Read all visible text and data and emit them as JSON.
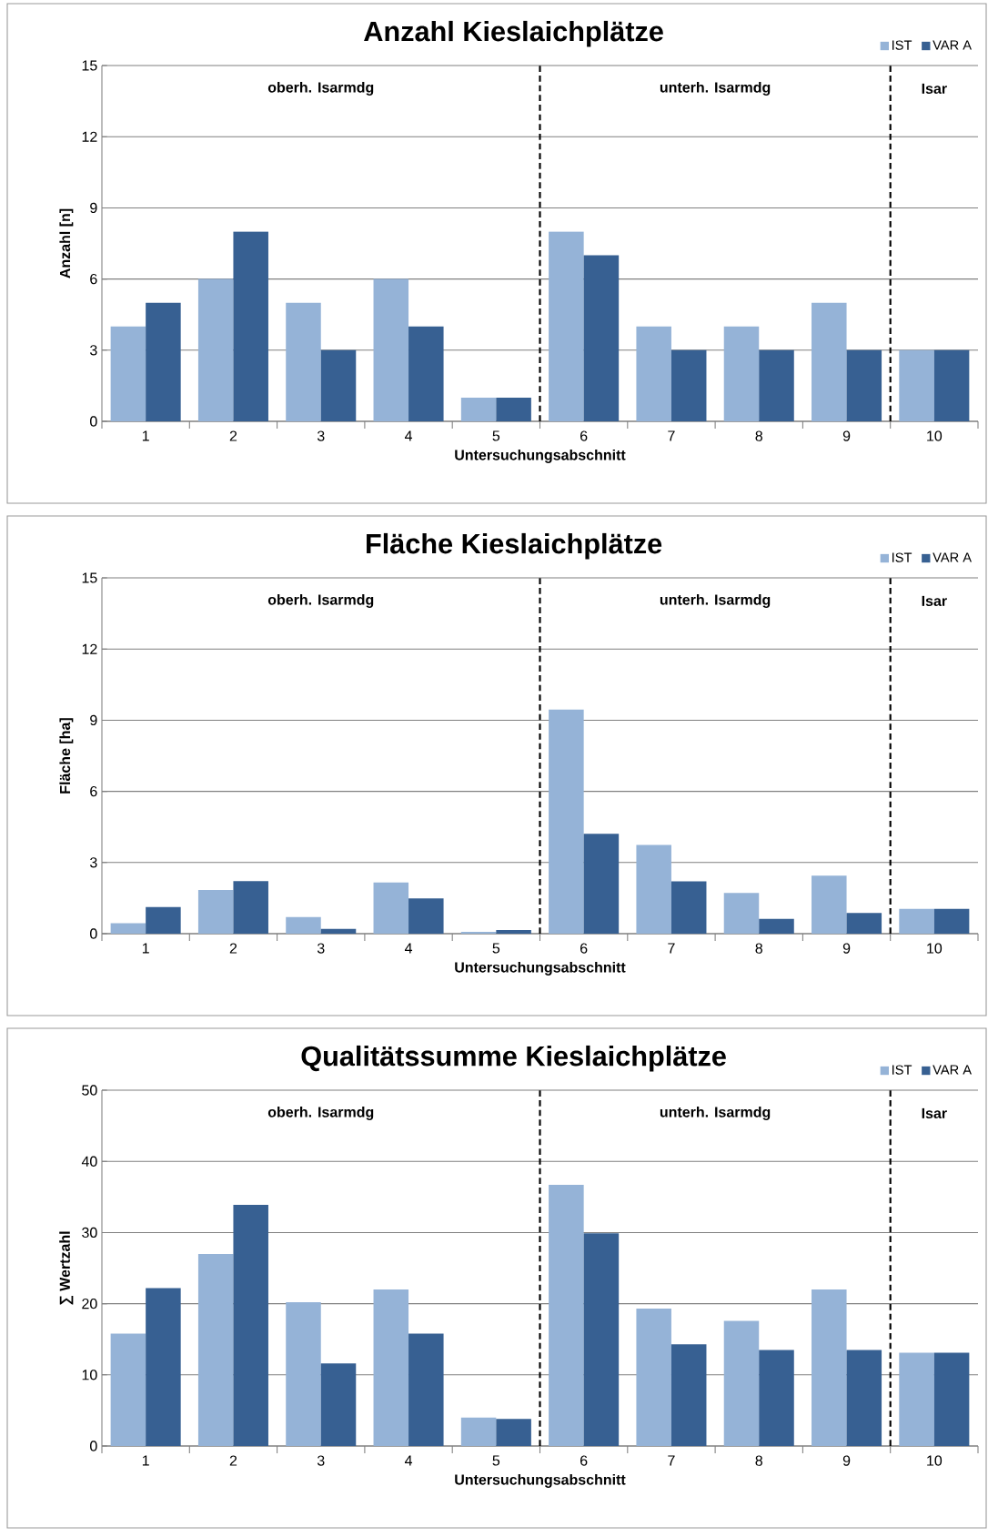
{
  "chart_data": [
    {
      "type": "bar",
      "title": "Anzahl Kieslaichplätze",
      "xlabel": "Untersuchungsabschnitt",
      "ylabel": "Anzahl [n]",
      "categories": [
        "1",
        "2",
        "3",
        "4",
        "5",
        "6",
        "7",
        "8",
        "9",
        "10"
      ],
      "series": [
        {
          "name": "IST",
          "color": "#95b3d7",
          "values": [
            4,
            6,
            5,
            6,
            1,
            8,
            4,
            4,
            5,
            3
          ]
        },
        {
          "name": "VAR A",
          "color": "#376092",
          "values": [
            5,
            8,
            3,
            4,
            1,
            7,
            3,
            3,
            3,
            3
          ]
        }
      ],
      "ylim": [
        0,
        15
      ],
      "yticks": [
        0,
        3,
        6,
        9,
        12,
        15
      ],
      "grid": "y",
      "legend": "top right",
      "annotations": [
        "oberh. Isarmdg",
        "unterh. Isarmdg",
        "Isar"
      ]
    },
    {
      "type": "bar",
      "title": "Fläche Kieslaichplätze",
      "xlabel": "Untersuchungsabschnitt",
      "ylabel": "Fläche [ha]",
      "categories": [
        "1",
        "2",
        "3",
        "4",
        "5",
        "6",
        "7",
        "8",
        "9",
        "10"
      ],
      "series": [
        {
          "name": "IST",
          "color": "#95b3d7",
          "values": [
            0.44,
            1.84,
            0.7,
            2.16,
            0.08,
            9.45,
            3.74,
            1.72,
            2.45,
            1.05
          ]
        },
        {
          "name": "VAR A",
          "color": "#376092",
          "values": [
            1.12,
            2.22,
            0.2,
            1.49,
            0.15,
            4.21,
            2.21,
            0.62,
            0.87,
            1.05
          ]
        }
      ],
      "ylim": [
        0,
        15
      ],
      "yticks": [
        0,
        3,
        6,
        9,
        12,
        15
      ],
      "grid": "y",
      "legend": "top right",
      "annotations": [
        "oberh. Isarmdg",
        "unterh. Isarmdg",
        "Isar"
      ]
    },
    {
      "type": "bar",
      "title": "Qualitätssumme Kieslaichplätze",
      "xlabel": "Untersuchungsabschnitt",
      "ylabel": "∑ Wertzahl",
      "categories": [
        "1",
        "2",
        "3",
        "4",
        "5",
        "6",
        "7",
        "8",
        "9",
        "10"
      ],
      "series": [
        {
          "name": "IST",
          "color": "#95b3d7",
          "values": [
            15.8,
            27.0,
            20.2,
            22.0,
            4.0,
            36.7,
            19.3,
            17.6,
            22.0,
            13.1
          ]
        },
        {
          "name": "VAR A",
          "color": "#376092",
          "values": [
            22.2,
            33.9,
            11.6,
            15.8,
            3.8,
            29.9,
            14.3,
            13.5,
            13.5,
            13.1
          ]
        }
      ],
      "ylim": [
        0,
        50
      ],
      "yticks": [
        0,
        10,
        20,
        30,
        40,
        50
      ],
      "grid": "y",
      "legend": "top right",
      "annotations": [
        "oberh. Isarmdg",
        "unterh. Isarmdg",
        "Isar"
      ]
    }
  ]
}
